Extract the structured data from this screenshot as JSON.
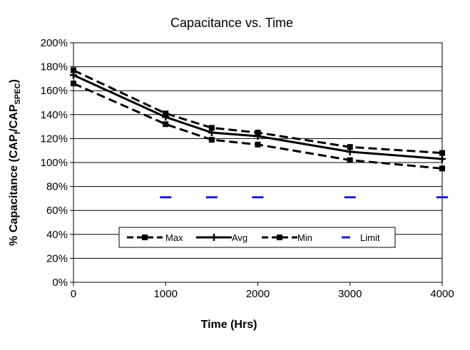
{
  "chart_data": {
    "type": "line",
    "title": "Capacitance vs. Time",
    "xlabel": "Time (Hrs)",
    "ylabel": "% Capacitance (CAP",
    "ylabel_sub1": "f",
    "ylabel_mid": "/CAP",
    "ylabel_sub2": "SPEC",
    "ylabel_end": ")",
    "xlim": [
      0,
      4000
    ],
    "ylim": [
      0,
      200
    ],
    "xticks": [
      0,
      1000,
      2000,
      3000,
      4000
    ],
    "xtick_labels": [
      "0",
      "1000",
      "2000",
      "3000",
      "4000"
    ],
    "yticks": [
      0,
      20,
      40,
      60,
      80,
      100,
      120,
      140,
      160,
      180,
      200
    ],
    "ytick_labels": [
      "0%",
      "20%",
      "40%",
      "60%",
      "80%",
      "100%",
      "120%",
      "140%",
      "160%",
      "180%",
      "200%"
    ],
    "grid": "horizontal",
    "legend_position": "bottom-center",
    "x": [
      0,
      1000,
      1500,
      2000,
      3000,
      4000
    ],
    "series": [
      {
        "name": "Max",
        "style": "dashed-square",
        "color": "#000000",
        "values": [
          177,
          141,
          129,
          125,
          113,
          108
        ]
      },
      {
        "name": "Avg",
        "style": "solid-plus",
        "color": "#000000",
        "values": [
          173,
          138,
          125,
          122,
          109,
          103
        ]
      },
      {
        "name": "Min",
        "style": "dashed-square",
        "color": "#000000",
        "values": [
          166,
          132,
          119,
          115,
          102,
          95
        ]
      },
      {
        "name": "Limit",
        "style": "dash-marker",
        "color": "#1c1cd6",
        "values": [
          null,
          71,
          71,
          71,
          71,
          71
        ]
      }
    ]
  }
}
